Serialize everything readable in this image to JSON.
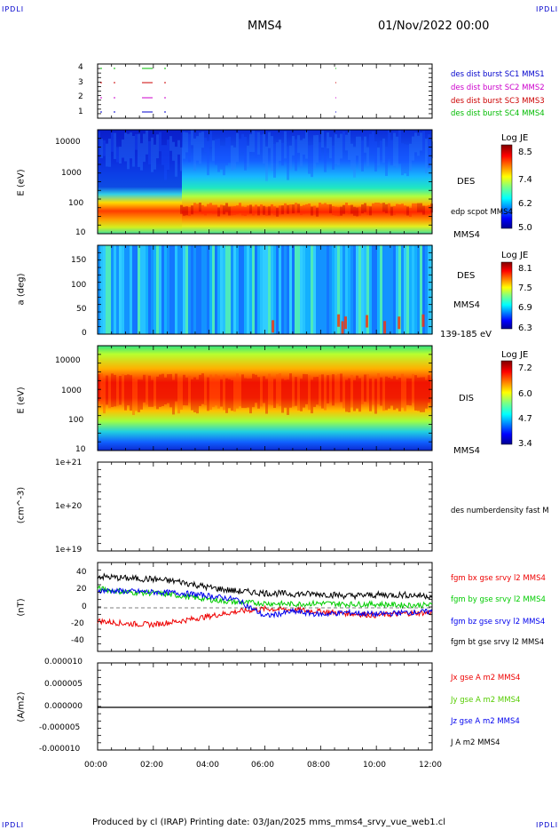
{
  "corners": {
    "tl": "IPDLI",
    "tr": "IPDLI",
    "bl": "IPDLI",
    "br": "IPDLI"
  },
  "header": {
    "spacecraft": "MMS4",
    "datetime": "01/Nov/2022 00:00"
  },
  "footer": {
    "text": "Produced by cl (IRAP)   Printing date: 03/Jan/2025   mms_mms4_srvy_vue_web1.cl"
  },
  "x_ticks": [
    "00:00",
    "02:00",
    "04:00",
    "06:00",
    "08:00",
    "10:00",
    "12:00"
  ],
  "chart_data": [
    {
      "type": "scatter",
      "panel": "burst availability",
      "y_ticks": [
        "4",
        "3",
        "2",
        "1"
      ],
      "legend": [
        {
          "label": "des dist burst SC1 MMS1",
          "color": "#0000cc"
        },
        {
          "label": "des dist burst SC2 MMS2",
          "color": "#cc00cc"
        },
        {
          "label": "des dist burst SC3 MMS3",
          "color": "#cc0000"
        },
        {
          "label": "des dist burst SC4 MMS4",
          "color": "#00bb00"
        }
      ]
    },
    {
      "type": "heatmap",
      "panel": "DES energy spectrogram",
      "ylabel": "E (eV)",
      "y_ticks": [
        "10000",
        "1000",
        "100",
        "10"
      ],
      "side_labels": [
        "DES",
        "edp scpot MMS4",
        "MMS4"
      ],
      "colorbar": {
        "title": "Log JE",
        "ticks": [
          "8.5",
          "7.4",
          "6.2",
          "5.0"
        ]
      }
    },
    {
      "type": "heatmap",
      "panel": "DES pitch angle",
      "ylabel": "a (deg)",
      "y_ticks": [
        "150",
        "100",
        "50",
        "0"
      ],
      "side_labels": [
        "DES",
        "MMS4",
        "139-185 eV"
      ],
      "colorbar": {
        "title": "Log JE",
        "ticks": [
          "8.1",
          "7.5",
          "6.9",
          "6.3"
        ]
      }
    },
    {
      "type": "heatmap",
      "panel": "DIS energy spectrogram",
      "ylabel": "E (eV)",
      "y_ticks": [
        "10000",
        "1000",
        "100",
        "10"
      ],
      "side_labels": [
        "DIS",
        "MMS4"
      ],
      "colorbar": {
        "title": "Log JE",
        "ticks": [
          "7.2",
          "6.0",
          "4.7",
          "3.4"
        ]
      }
    },
    {
      "type": "line",
      "panel": "density",
      "ylabel": "(cm^-3)",
      "y_ticks": [
        "1e+21",
        "1e+20",
        "1e+19"
      ],
      "legend": [
        {
          "label": "des numberdensity fast M",
          "color": "#000000"
        }
      ]
    },
    {
      "type": "line",
      "panel": "magnetic field",
      "ylabel": "(nT)",
      "y_ticks": [
        "40",
        "20",
        "0",
        "-20",
        "-40"
      ],
      "ylim": [
        -48,
        48
      ],
      "legend": [
        {
          "label": "fgm bx gse srvy l2 MMS4",
          "color": "#ee0000"
        },
        {
          "label": "fgm by gse srvy l2 MMS4",
          "color": "#00cc00"
        },
        {
          "label": "fgm bz gse srvy l2 MMS4",
          "color": "#0000ee"
        },
        {
          "label": "fgm bt gse srvy l2 MMS4",
          "color": "#000000"
        }
      ],
      "x_hours": [
        0,
        1,
        2,
        3,
        4,
        5,
        6,
        7,
        8,
        9,
        10,
        11,
        12
      ],
      "series": [
        {
          "name": "fgm bx gse srvy l2 MMS4",
          "values": [
            -15,
            -18,
            -19,
            -15,
            -10,
            -5,
            -2,
            -3,
            -5,
            -7,
            -9,
            -7,
            -6
          ]
        },
        {
          "name": "fgm by gse srvy l2 MMS4",
          "values": [
            20,
            16,
            15,
            12,
            8,
            5,
            4,
            3,
            4,
            3,
            3,
            2,
            2
          ]
        },
        {
          "name": "fgm bz gse srvy l2 MMS4",
          "values": [
            18,
            17,
            16,
            15,
            12,
            8,
            -10,
            -5,
            -8,
            -6,
            -8,
            -6,
            -5
          ]
        },
        {
          "name": "fgm bt gse srvy l2 MMS4",
          "values": [
            33,
            31,
            30,
            27,
            21,
            17,
            15,
            14,
            14,
            12,
            13,
            13,
            12
          ]
        }
      ]
    },
    {
      "type": "line",
      "panel": "current density",
      "ylabel": "(A/m2)",
      "y_ticks": [
        "0.000010",
        "0.000005",
        "0.000000",
        "-0.000005",
        "-0.000010"
      ],
      "ylim": [
        -1e-05,
        1e-05
      ],
      "legend": [
        {
          "label": "Jx gse A m2 MMS4",
          "color": "#ee0000"
        },
        {
          "label": "Jy gse A m2 MMS4",
          "color": "#55cc00"
        },
        {
          "label": "Jz gse A m2 MMS4",
          "color": "#0000ee"
        },
        {
          "label": "J A m2 MMS4",
          "color": "#000000"
        }
      ],
      "x_hours": [
        0,
        12
      ],
      "series": [
        {
          "name": "J A m2 MMS4",
          "values": [
            0,
            0
          ]
        }
      ]
    }
  ]
}
